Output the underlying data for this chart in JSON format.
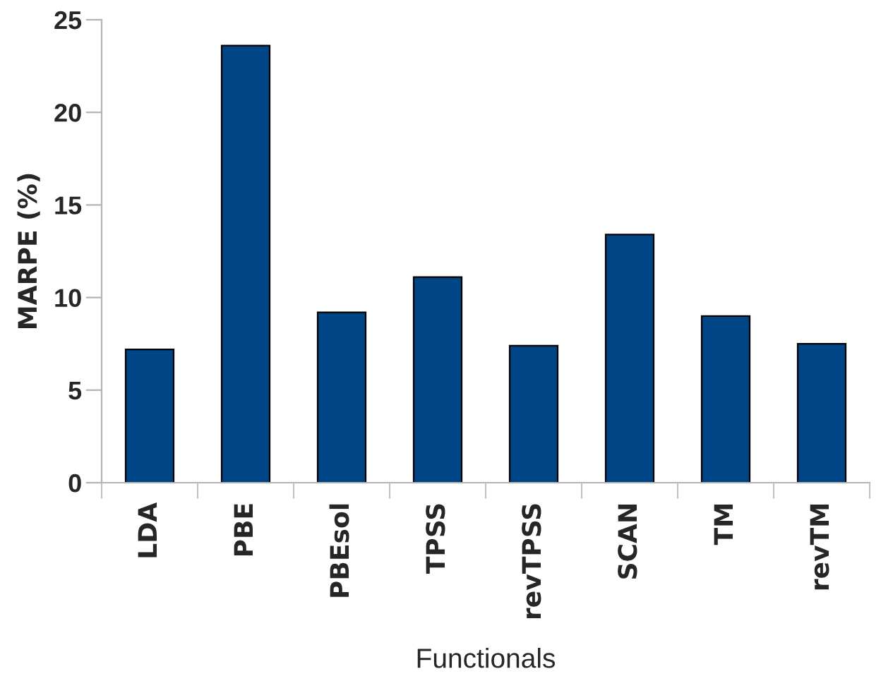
{
  "chart_data": {
    "type": "bar",
    "xlabel": "Functionals",
    "ylabel": "MARPE (%)",
    "categories": [
      "LDA",
      "PBE",
      "PBEsol",
      "TPSS",
      "revTPSS",
      "SCAN",
      "TM",
      "revTM"
    ],
    "values": [
      7.2,
      23.6,
      9.2,
      11.1,
      7.4,
      13.4,
      9.0,
      7.5
    ],
    "color": "#004586",
    "ylim": [
      0,
      25
    ],
    "yticks": [
      0,
      5,
      10,
      15,
      20,
      25
    ],
    "grid": false,
    "legend": false
  }
}
